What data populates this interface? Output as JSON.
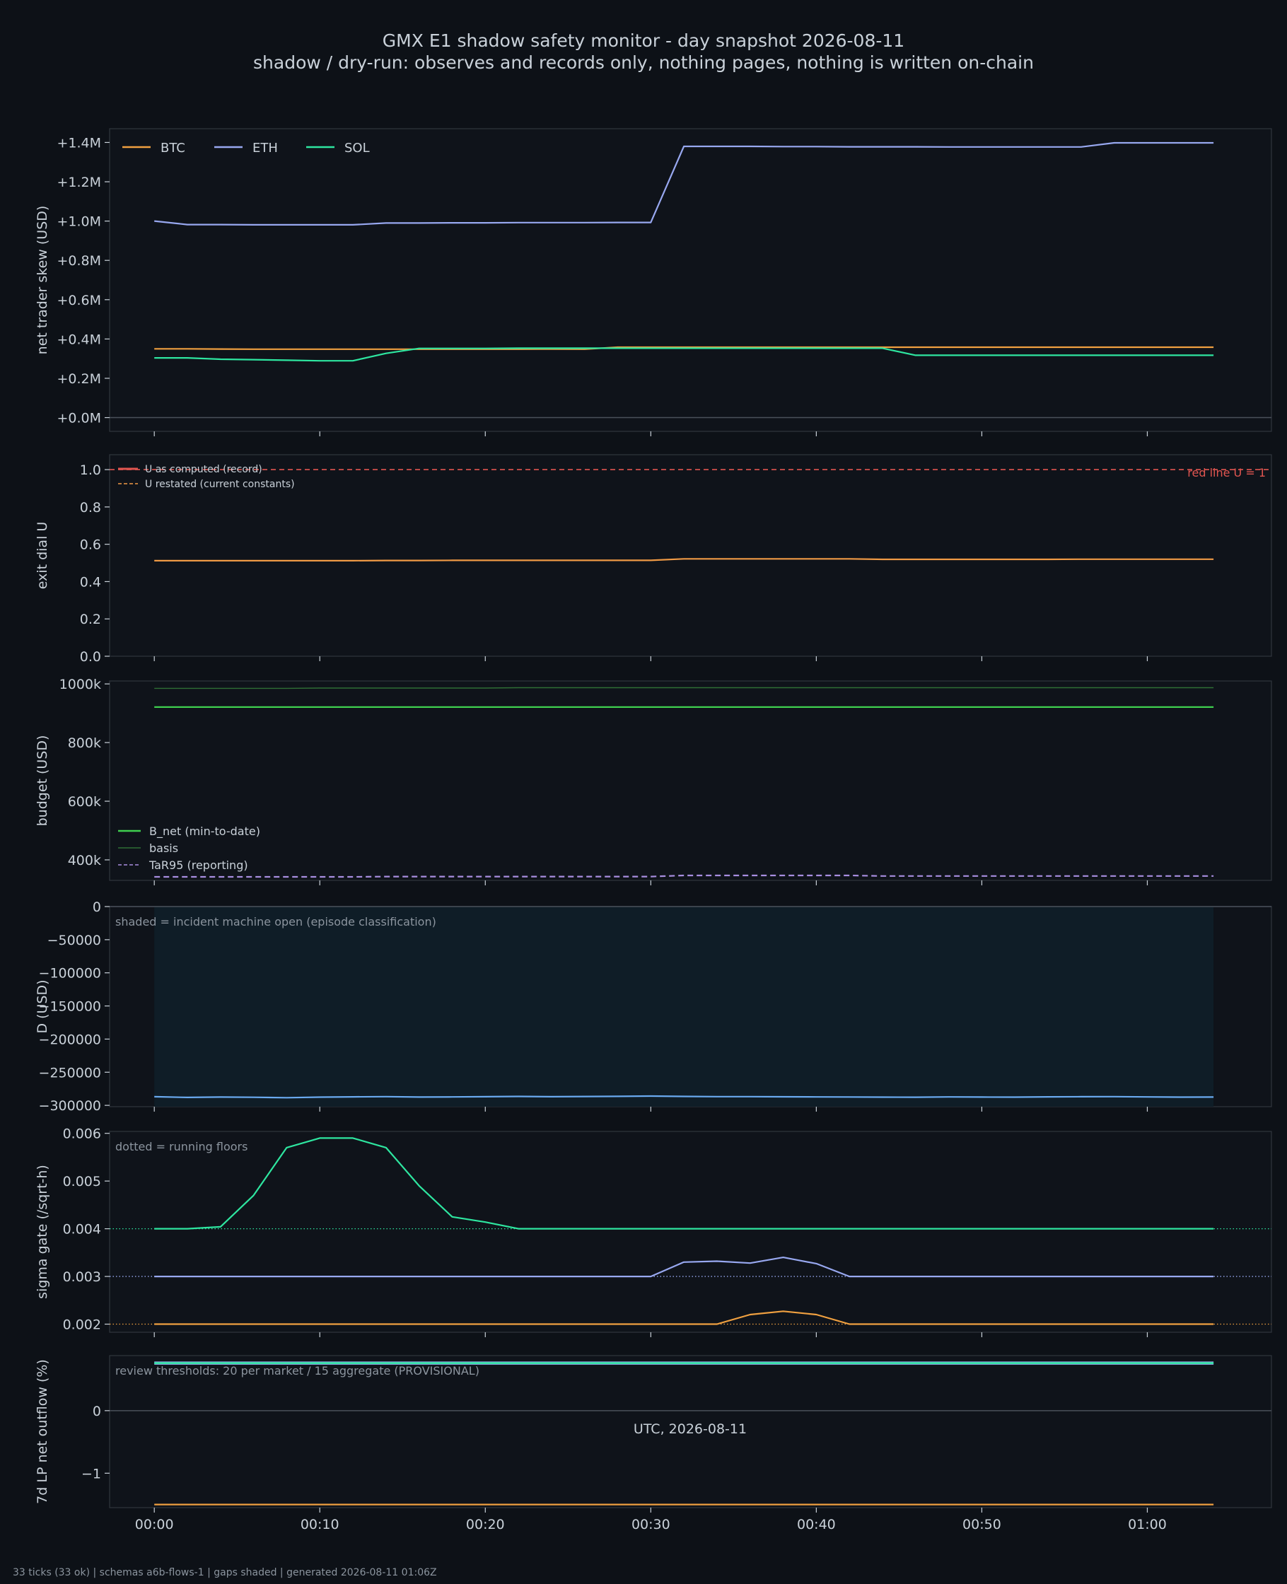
{
  "title_line1": "GMX E1 shadow safety monitor - day snapshot 2026-08-11",
  "title_line2": "shadow / dry-run: observes and records only, nothing pages, nothing is written on-chain",
  "footer": "33 ticks (33 ok) | schemas a6b-flows-1 | gaps shaded | generated 2026-08-11 01:06Z",
  "xlabel": "UTC, 2026-08-11",
  "colors": {
    "background": "#0d1117",
    "btc": "#f0a040",
    "eth": "#98a8f0",
    "sol": "#2ee6a0",
    "red_line": "#e05550",
    "u_restated": "#f09a45",
    "b_net": "#3fcf4f",
    "basis": "#2f6e35",
    "tar95": "#a88ee0",
    "d_line": "#6aaaf0",
    "shade": "#0f1d27"
  },
  "chart_data": [
    {
      "id": "skew",
      "type": "line",
      "ylabel": "net trader skew (USD)",
      "ylim": [
        -70000,
        1470000
      ],
      "y_ticks": [
        0,
        200000,
        400000,
        600000,
        800000,
        1000000,
        1200000,
        1400000
      ],
      "y_tick_labels": [
        "+0.0M",
        "+0.2M",
        "+0.4M",
        "+0.6M",
        "+0.8M",
        "+1.0M",
        "+1.2M",
        "+1.4M"
      ],
      "zero_line": true,
      "legend": "top-left",
      "series": [
        {
          "name": "BTC",
          "color_key": "btc",
          "values": [
            350000,
            350000,
            349000,
            348000,
            348000,
            348000,
            348000,
            348000,
            348000,
            348000,
            348000,
            348000,
            349000,
            348000,
            358000,
            358000,
            358000,
            358000,
            358000,
            358000,
            358000,
            358000,
            358000,
            358000,
            358000,
            358000,
            358000,
            358000,
            358000,
            358000,
            358000,
            358000,
            358000
          ]
        },
        {
          "name": "ETH",
          "color_key": "eth",
          "values": [
            1000000,
            982000,
            982000,
            981000,
            981000,
            981000,
            981000,
            990000,
            990000,
            991000,
            991000,
            992000,
            992000,
            992000,
            993000,
            993000,
            1380000,
            1380000,
            1380000,
            1379000,
            1379000,
            1378000,
            1378000,
            1378000,
            1377000,
            1377000,
            1377000,
            1377000,
            1377000,
            1398000,
            1398000,
            1398000,
            1398000
          ]
        },
        {
          "name": "SOL",
          "color_key": "sol",
          "values": [
            304000,
            304000,
            297000,
            295000,
            292000,
            289000,
            289000,
            327000,
            352000,
            352000,
            352000,
            353000,
            353000,
            353000,
            353000,
            353000,
            353000,
            353000,
            353000,
            353000,
            353000,
            353000,
            353000,
            317000,
            317000,
            317000,
            317000,
            317000,
            317000,
            317000,
            317000,
            317000,
            317000
          ]
        }
      ]
    },
    {
      "id": "exit",
      "type": "line",
      "ylabel": "exit dial U",
      "ylim": [
        0,
        1.08
      ],
      "y_ticks": [
        0,
        0.2,
        0.4,
        0.6,
        0.8,
        1.0
      ],
      "y_tick_labels": [
        "0.0",
        "0.2",
        "0.4",
        "0.6",
        "0.8",
        "1.0"
      ],
      "red_line_label": "red line U = 1",
      "legend": "top-left",
      "legend_entries": [
        "U as computed (record)",
        "U restated (current constants)"
      ],
      "series": [
        {
          "name": "U as computed (record)",
          "color_key": "red_line",
          "dashed": true,
          "values": []
        },
        {
          "name": "U restated (current constants)",
          "color_key": "u_restated",
          "values": [
            0.512,
            0.512,
            0.512,
            0.512,
            0.512,
            0.512,
            0.512,
            0.513,
            0.513,
            0.514,
            0.514,
            0.514,
            0.514,
            0.514,
            0.514,
            0.514,
            0.522,
            0.522,
            0.522,
            0.522,
            0.522,
            0.522,
            0.519,
            0.519,
            0.519,
            0.519,
            0.519,
            0.519,
            0.52,
            0.52,
            0.52,
            0.52,
            0.52
          ]
        }
      ]
    },
    {
      "id": "budget",
      "type": "line",
      "ylabel": "budget (USD)",
      "ylim": [
        330000,
        1010000
      ],
      "y_ticks": [
        400000,
        600000,
        800000,
        1000000
      ],
      "y_tick_labels": [
        "400k",
        "600k",
        "800k",
        "1000k"
      ],
      "legend": "bottom-left",
      "legend_entries": [
        "B_net (min-to-date)",
        "basis",
        "TaR95 (reporting)"
      ],
      "series": [
        {
          "name": "B_net (min-to-date)",
          "color_key": "b_net",
          "values": [
            921000,
            921000,
            921000,
            921000,
            921000,
            921000,
            921000,
            921000,
            921000,
            921000,
            921000,
            921000,
            921000,
            921000,
            921000,
            921000,
            921000,
            921000,
            921000,
            921000,
            921000,
            921000,
            921000,
            921000,
            921000,
            921000,
            921000,
            921000,
            921000,
            921000,
            921000,
            921000,
            921000
          ]
        },
        {
          "name": "basis",
          "color_key": "basis",
          "values": [
            985000,
            985000,
            985000,
            985000,
            985000,
            986000,
            986000,
            986000,
            986000,
            986000,
            986000,
            987000,
            987000,
            987000,
            987000,
            987000,
            987000,
            987000,
            987000,
            987000,
            987000,
            987000,
            987000,
            987000,
            987000,
            987000,
            987000,
            987000,
            987000,
            987000,
            987000,
            987000,
            987000
          ]
        },
        {
          "name": "TaR95 (reporting)",
          "color_key": "tar95",
          "dashed": true,
          "values": [
            342000,
            342000,
            342000,
            342000,
            342000,
            342000,
            342000,
            343000,
            343000,
            343000,
            343000,
            343000,
            343000,
            343000,
            343000,
            343000,
            347000,
            347000,
            347000,
            347000,
            347000,
            347000,
            345000,
            345000,
            345000,
            345000,
            345000,
            345000,
            345000,
            345000,
            345000,
            345000,
            345000
          ]
        }
      ]
    },
    {
      "id": "d",
      "type": "line",
      "ylabel": "D (USD)",
      "ylim": [
        -302000,
        0
      ],
      "y_ticks": [
        0,
        -50000,
        -100000,
        -150000,
        -200000,
        -250000,
        -300000
      ],
      "y_tick_labels": [
        "0",
        "−50000",
        "−100000",
        "−150000",
        "−200000",
        "−250000",
        "−300000"
      ],
      "note": "shaded = incident machine open (episode classification)",
      "series": [
        {
          "name": "D",
          "color_key": "d_line",
          "values": [
            -287000,
            -288000,
            -287500,
            -287800,
            -288500,
            -287600,
            -287200,
            -286800,
            -287500,
            -287300,
            -287000,
            -286500,
            -287000,
            -286600,
            -286400,
            -286000,
            -286500,
            -286900,
            -286800,
            -287100,
            -287300,
            -287400,
            -287600,
            -287700,
            -287300,
            -287500,
            -287600,
            -287200,
            -287000,
            -286800,
            -287300,
            -287600,
            -287500
          ]
        }
      ]
    },
    {
      "id": "sigma",
      "type": "line",
      "ylabel": "sigma gate (/sqrt-h)",
      "ylim": [
        0.00183,
        0.00604
      ],
      "y_ticks": [
        0.002,
        0.003,
        0.004,
        0.005,
        0.006
      ],
      "y_tick_labels": [
        "0.002",
        "0.003",
        "0.004",
        "0.005",
        "0.006"
      ],
      "note": "dotted = running floors",
      "floors": [
        {
          "value": 0.004,
          "color_key": "sol"
        },
        {
          "value": 0.003,
          "color_key": "eth"
        },
        {
          "value": 0.002,
          "color_key": "btc"
        }
      ],
      "series": [
        {
          "name": "SOL",
          "color_key": "sol",
          "values": [
            0.004,
            0.004,
            0.00404,
            0.0047,
            0.0057,
            0.0059,
            0.0059,
            0.0057,
            0.0049,
            0.00425,
            0.00414,
            0.004,
            0.004,
            0.004,
            0.004,
            0.004,
            0.004,
            0.004,
            0.004,
            0.004,
            0.004,
            0.004,
            0.004,
            0.004,
            0.004,
            0.004,
            0.004,
            0.004,
            0.004,
            0.004,
            0.004,
            0.004,
            0.004
          ]
        },
        {
          "name": "ETH",
          "color_key": "eth",
          "values": [
            0.003,
            0.003,
            0.003,
            0.003,
            0.003,
            0.003,
            0.003,
            0.003,
            0.003,
            0.003,
            0.003,
            0.003,
            0.003,
            0.003,
            0.003,
            0.003,
            0.0033,
            0.00332,
            0.00328,
            0.0034,
            0.00327,
            0.003,
            0.003,
            0.003,
            0.003,
            0.003,
            0.003,
            0.003,
            0.003,
            0.003,
            0.003,
            0.003,
            0.003
          ]
        },
        {
          "name": "BTC",
          "color_key": "btc",
          "values": [
            0.002,
            0.002,
            0.002,
            0.002,
            0.002,
            0.002,
            0.002,
            0.002,
            0.002,
            0.002,
            0.002,
            0.002,
            0.002,
            0.002,
            0.002,
            0.002,
            0.002,
            0.002,
            0.0022,
            0.00227,
            0.0022,
            0.002,
            0.002,
            0.002,
            0.002,
            0.002,
            0.002,
            0.002,
            0.002,
            0.002,
            0.002,
            0.002,
            0.002
          ]
        }
      ]
    },
    {
      "id": "lp",
      "type": "line",
      "ylabel": "7d LP net outflow (%)",
      "ylim": [
        -1.55,
        0.88
      ],
      "y_ticks": [
        0,
        -1
      ],
      "y_tick_labels": [
        "0",
        "−1"
      ],
      "zero_line": true,
      "note": "review thresholds: 20 per market / 15 aggregate (PROVISIONAL)",
      "series": [
        {
          "name": "ETH",
          "color_key": "eth",
          "width": 4.5,
          "values": [
            0.76,
            0.76,
            0.76,
            0.76,
            0.76,
            0.76,
            0.76,
            0.76,
            0.76,
            0.76,
            0.76,
            0.76,
            0.76,
            0.76,
            0.76,
            0.76,
            0.76,
            0.76,
            0.76,
            0.76,
            0.76,
            0.76,
            0.76,
            0.76,
            0.76,
            0.76,
            0.76,
            0.76,
            0.76,
            0.76,
            0.76,
            0.76,
            0.76
          ]
        },
        {
          "name": "SOL",
          "color_key": "sol",
          "width": 2.5,
          "values": [
            0.76,
            0.76,
            0.76,
            0.76,
            0.76,
            0.76,
            0.76,
            0.76,
            0.76,
            0.76,
            0.76,
            0.76,
            0.76,
            0.76,
            0.76,
            0.76,
            0.76,
            0.76,
            0.76,
            0.76,
            0.76,
            0.76,
            0.76,
            0.76,
            0.76,
            0.76,
            0.76,
            0.76,
            0.76,
            0.76,
            0.76,
            0.76,
            0.76
          ]
        },
        {
          "name": "BTC",
          "color_key": "btc",
          "values": [
            -1.5,
            -1.5,
            -1.5,
            -1.5,
            -1.5,
            -1.5,
            -1.5,
            -1.5,
            -1.5,
            -1.5,
            -1.5,
            -1.5,
            -1.5,
            -1.5,
            -1.5,
            -1.5,
            -1.5,
            -1.5,
            -1.5,
            -1.5,
            -1.5,
            -1.5,
            -1.5,
            -1.5,
            -1.5,
            -1.5,
            -1.5,
            -1.5,
            -1.5,
            -1.5,
            -1.5,
            -1.5,
            -1.5
          ]
        }
      ]
    }
  ],
  "x_axis": {
    "x_minutes": [
      0,
      2,
      4,
      6,
      8,
      10,
      12,
      14,
      16,
      18,
      20,
      22,
      24,
      26,
      28,
      30,
      32,
      34,
      36,
      38,
      40,
      42,
      44,
      46,
      48,
      50,
      52,
      54,
      56,
      58,
      60,
      62,
      64
    ],
    "range_minutes": [
      -2.7,
      67.5
    ],
    "ticks_minutes": [
      0,
      10,
      20,
      30,
      40,
      50,
      60
    ],
    "tick_labels": [
      "00:00",
      "00:10",
      "00:20",
      "00:30",
      "00:40",
      "00:50",
      "01:00"
    ]
  }
}
